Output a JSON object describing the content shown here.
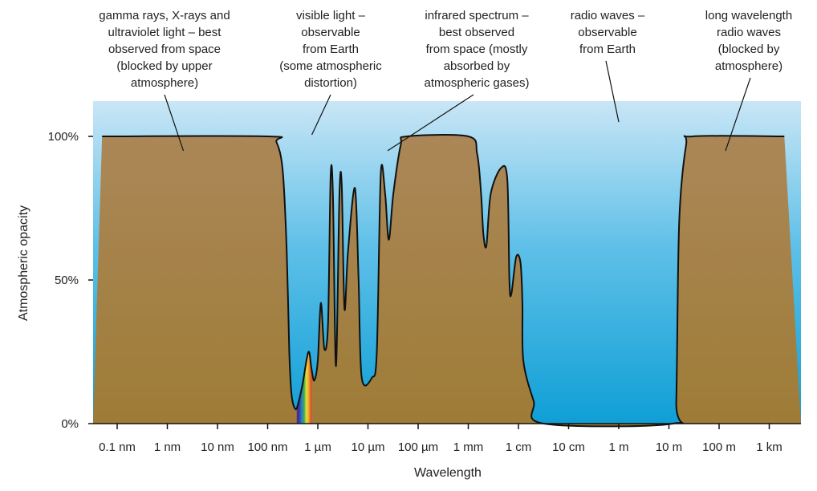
{
  "chart_data": {
    "type": "area",
    "xlabel": "Wavelength",
    "ylabel": "Atmospheric opacity",
    "x_scale": "log",
    "x_unit": "m",
    "x_ticks": [
      {
        "label": "0.1 nm",
        "value": 1e-10
      },
      {
        "label": "1 nm",
        "value": 1e-09
      },
      {
        "label": "10 nm",
        "value": 1e-08
      },
      {
        "label": "100 nm",
        "value": 1e-07
      },
      {
        "label": "1 µm",
        "value": 1e-06
      },
      {
        "label": "10 µm",
        "value": 1e-05
      },
      {
        "label": "100 µm",
        "value": 0.0001
      },
      {
        "label": "1 mm",
        "value": 0.001
      },
      {
        "label": "1 cm",
        "value": 0.01
      },
      {
        "label": "10 cm",
        "value": 0.1
      },
      {
        "label": "1 m",
        "value": 1
      },
      {
        "label": "10 m",
        "value": 10
      },
      {
        "label": "100 m",
        "value": 100
      },
      {
        "label": "1 km",
        "value": 1000
      }
    ],
    "y_ticks": [
      {
        "label": "0%",
        "value": 0
      },
      {
        "label": "50%",
        "value": 50
      },
      {
        "label": "100%",
        "value": 100
      }
    ],
    "ylim": [
      0,
      100
    ],
    "xlim": [
      5e-11,
      2000
    ],
    "series": [
      {
        "points": [
          {
            "x": 5e-11,
            "y": 100
          },
          {
            "x": 1e-07,
            "y": 100
          },
          {
            "x": 1.5e-07,
            "y": 98
          },
          {
            "x": 2e-07,
            "y": 88
          },
          {
            "x": 2.4e-07,
            "y": 60
          },
          {
            "x": 2.7e-07,
            "y": 25
          },
          {
            "x": 3e-07,
            "y": 10
          },
          {
            "x": 3.6e-07,
            "y": 5
          },
          {
            "x": 4.2e-07,
            "y": 8
          },
          {
            "x": 5e-07,
            "y": 14
          },
          {
            "x": 6.5e-07,
            "y": 25
          },
          {
            "x": 7.5e-07,
            "y": 19
          },
          {
            "x": 8.5e-07,
            "y": 15
          },
          {
            "x": 1e-06,
            "y": 22
          },
          {
            "x": 1.15e-06,
            "y": 42
          },
          {
            "x": 1.35e-06,
            "y": 26
          },
          {
            "x": 1.6e-06,
            "y": 35
          },
          {
            "x": 1.8e-06,
            "y": 86
          },
          {
            "x": 2e-06,
            "y": 80
          },
          {
            "x": 2.3e-06,
            "y": 20
          },
          {
            "x": 2.7e-06,
            "y": 80
          },
          {
            "x": 3e-06,
            "y": 83
          },
          {
            "x": 3.4e-06,
            "y": 40
          },
          {
            "x": 4e-06,
            "y": 60
          },
          {
            "x": 5.5e-06,
            "y": 82
          },
          {
            "x": 6.5e-06,
            "y": 50
          },
          {
            "x": 7.5e-06,
            "y": 16
          },
          {
            "x": 1.2e-05,
            "y": 16
          },
          {
            "x": 1.5e-05,
            "y": 25
          },
          {
            "x": 1.8e-05,
            "y": 87
          },
          {
            "x": 2.2e-05,
            "y": 80
          },
          {
            "x": 2.6e-05,
            "y": 64
          },
          {
            "x": 3.2e-05,
            "y": 80
          },
          {
            "x": 4.5e-05,
            "y": 97
          },
          {
            "x": 6e-05,
            "y": 100
          },
          {
            "x": 0.001,
            "y": 100
          },
          {
            "x": 0.0015,
            "y": 94
          },
          {
            "x": 0.0018,
            "y": 80
          },
          {
            "x": 0.002,
            "y": 66
          },
          {
            "x": 0.0023,
            "y": 62
          },
          {
            "x": 0.0028,
            "y": 80
          },
          {
            "x": 0.0045,
            "y": 89
          },
          {
            "x": 0.006,
            "y": 85
          },
          {
            "x": 0.0066,
            "y": 50
          },
          {
            "x": 0.0072,
            "y": 45
          },
          {
            "x": 0.009,
            "y": 58
          },
          {
            "x": 0.011,
            "y": 56
          },
          {
            "x": 0.012,
            "y": 42
          },
          {
            "x": 0.0125,
            "y": 22
          },
          {
            "x": 0.02,
            "y": 8
          },
          {
            "x": 0.032,
            "y": 0
          },
          {
            "x": 12,
            "y": 0
          },
          {
            "x": 14,
            "y": 8
          },
          {
            "x": 16,
            "y": 70
          },
          {
            "x": 22,
            "y": 97
          },
          {
            "x": 30,
            "y": 100
          },
          {
            "x": 2000,
            "y": 100
          }
        ]
      }
    ],
    "visible_spectrum": {
      "x_start": 3.8e-07,
      "x_end": 7.5e-07,
      "y_top": 100
    },
    "annotations": [
      {
        "lines": [
          "gamma rays, X-rays and",
          "ultraviolet light – best",
          "observed from space",
          "(blocked by upper",
          "atmosphere)"
        ],
        "x": 1e-09,
        "y": 95
      },
      {
        "lines": [
          "visible light  –",
          "observable",
          "from Earth",
          "(some atmospheric",
          "distortion)"
        ],
        "x": 7.6e-07,
        "y": 100
      },
      {
        "lines": [
          "infrared spectrum –",
          "best observed",
          "from space (mostly",
          "absorbed by",
          "atmospheric gases)"
        ],
        "x": 0.0001,
        "y": 95
      },
      {
        "lines": [
          "radio waves –",
          "observable",
          "from Earth"
        ],
        "x": 1,
        "y": 105
      },
      {
        "lines": [
          "long wavelength",
          "radio waves",
          "(blocked by",
          "atmosphere)"
        ],
        "x": 100,
        "y": 95
      }
    ],
    "colors": {
      "sky_top": "#c9e6f6",
      "sky_mid": "#5fc0e8",
      "sky_bottom": "#0f9fd6",
      "ground_top": "#ab8758",
      "ground_bottom": "#9e7c36",
      "outline": "#111111"
    }
  }
}
